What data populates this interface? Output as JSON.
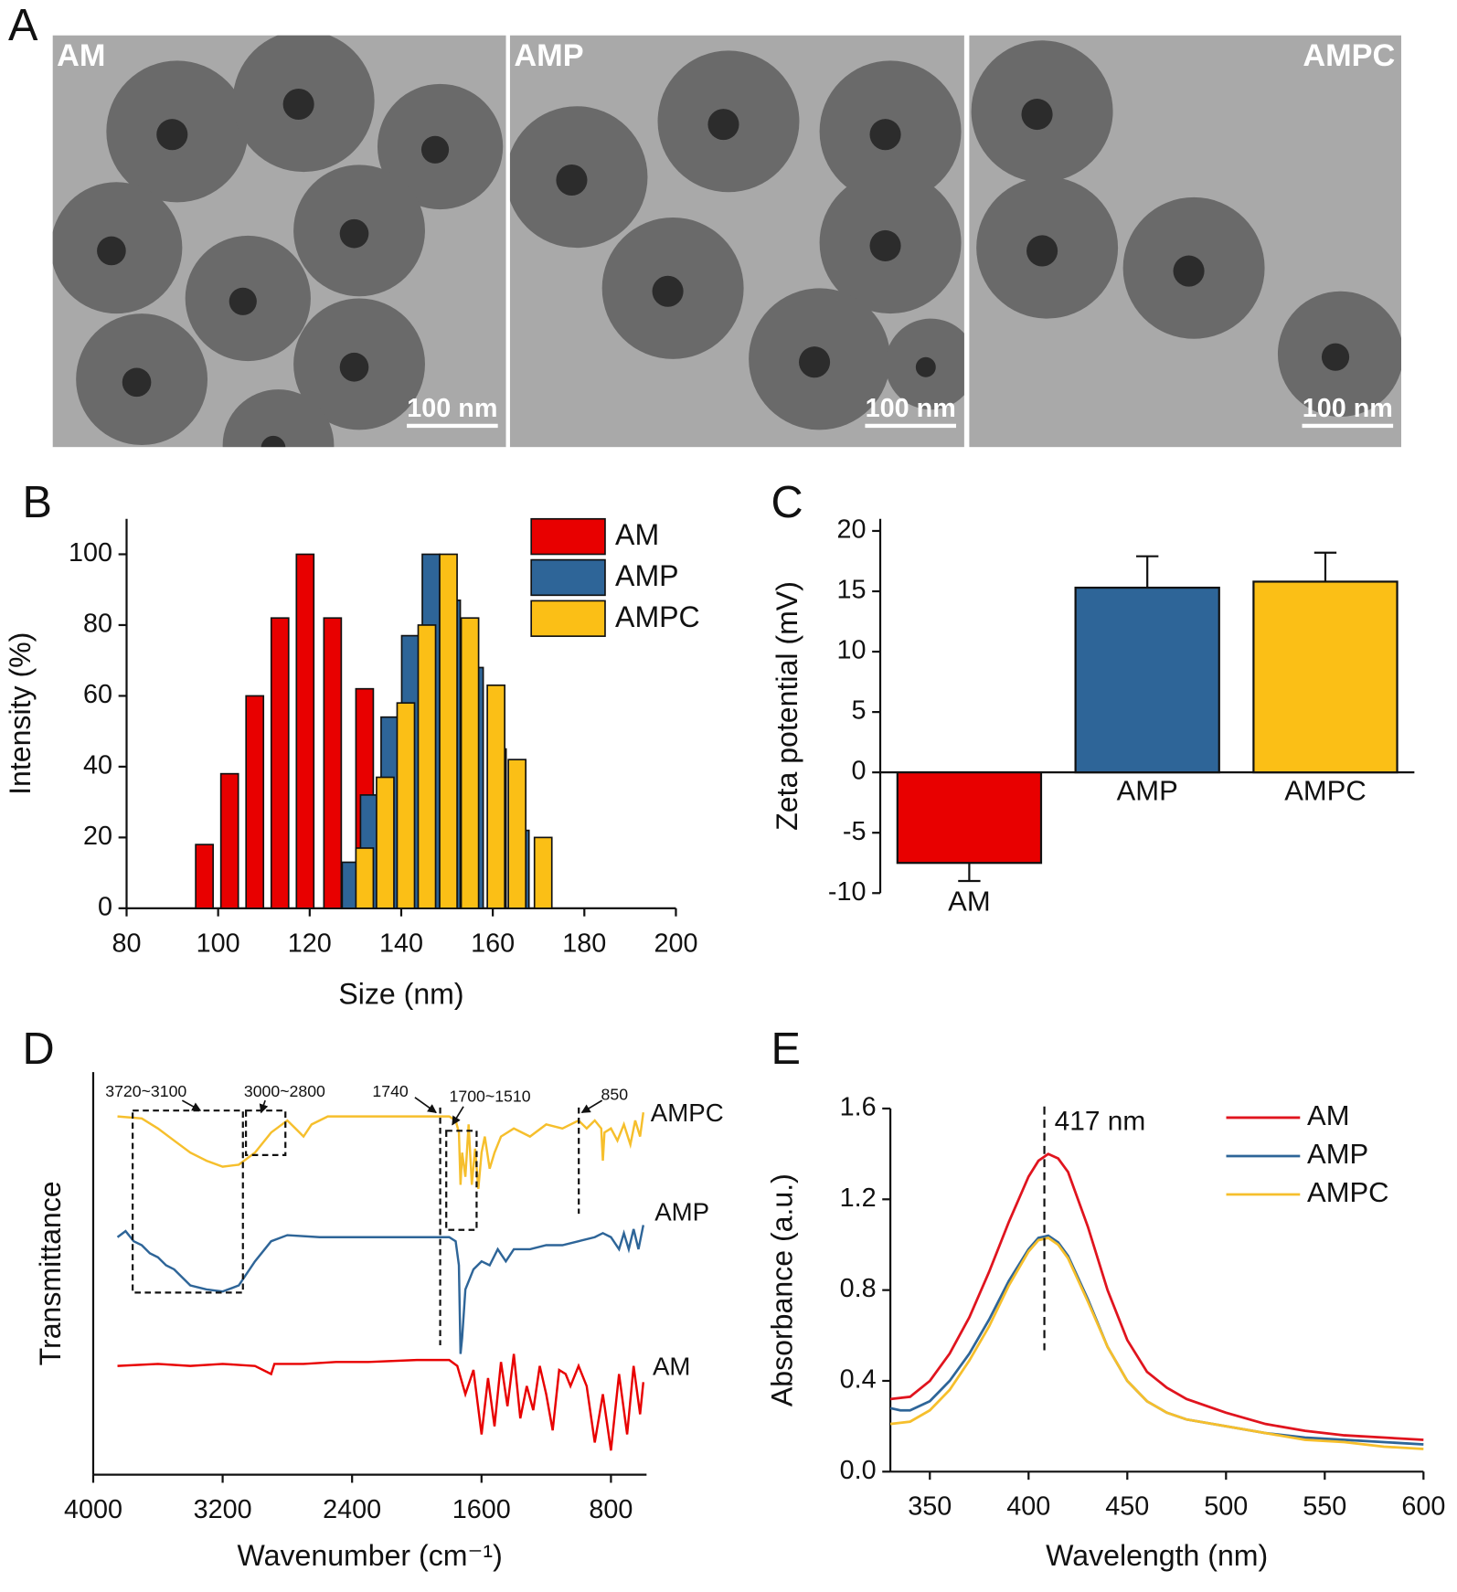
{
  "chart_data": [
    {
      "type": "image",
      "panel": "A",
      "panels": [
        {
          "label": "AM",
          "scale_bar": "100 nm"
        },
        {
          "label": "AMP",
          "scale_bar": "100 nm"
        },
        {
          "label": "AMPC",
          "scale_bar": "100 nm"
        }
      ]
    },
    {
      "type": "bar",
      "panel": "B",
      "x_label": "Size (nm)",
      "y_label": "Intensity (%)",
      "xlim": [
        80,
        200
      ],
      "xticks": [
        80,
        100,
        120,
        140,
        160,
        180,
        200
      ],
      "ylim": [
        0,
        110
      ],
      "yticks": [
        0,
        20,
        40,
        60,
        80,
        100
      ],
      "legend": "top-right",
      "series": [
        {
          "name": "AM",
          "color": "#e80000",
          "x": [
            97,
            102.5,
            108,
            113.5,
            119,
            125,
            132
          ],
          "values": [
            18,
            38,
            60,
            82,
            100,
            82,
            62
          ]
        },
        {
          "name": "AMP",
          "color": "#2e6598",
          "x": [
            129,
            133,
            137.5,
            142,
            146.5,
            151,
            156,
            161,
            166
          ],
          "values": [
            13,
            32,
            54,
            77,
            100,
            87,
            68,
            45,
            22
          ]
        },
        {
          "name": "AMPC",
          "color": "#fbbf16",
          "x": [
            132,
            136.5,
            141,
            145.6,
            150.3,
            155,
            160.7,
            165.3,
            171
          ],
          "values": [
            17,
            37,
            58,
            80,
            100,
            82,
            63,
            42,
            20
          ]
        }
      ]
    },
    {
      "type": "bar-error",
      "panel": "C",
      "y_label": "Zeta potential (mV)",
      "categories": [
        "AM",
        "AMP",
        "AMPC"
      ],
      "values": [
        -7.5,
        15.3,
        15.8
      ],
      "errors": [
        1.5,
        2.6,
        2.4
      ],
      "colors": [
        "#e80000",
        "#2e6598",
        "#fbbf16"
      ],
      "ylim": [
        -10,
        21
      ],
      "yticks": [
        -10,
        -5,
        0,
        5,
        10,
        15,
        20
      ]
    },
    {
      "type": "spectra",
      "panel": "D",
      "x_label": "Wavenumber (cm⁻¹)",
      "y_label": "Transmittance",
      "xlim": [
        4000,
        580
      ],
      "xticks": [
        4000,
        3200,
        2400,
        1600,
        800
      ],
      "ylim": [
        0,
        100
      ],
      "annotations": [
        "3720~3100",
        "3000~2800",
        "1740",
        "1700~1510",
        "850"
      ],
      "series": [
        {
          "name": "AMPC",
          "color": "#f6bf2c",
          "x": [
            3850,
            3700,
            3600,
            3500,
            3400,
            3300,
            3200,
            3100,
            3000,
            2900,
            2800,
            2750,
            2700,
            2650,
            2550,
            2400,
            2200,
            2000,
            1800,
            1760,
            1740,
            1730,
            1720,
            1700,
            1680,
            1660,
            1640,
            1620,
            1600,
            1580,
            1550,
            1520,
            1480,
            1400,
            1300,
            1200,
            1100,
            1000,
            950,
            900,
            860,
            850,
            840,
            800,
            760,
            720,
            680,
            650,
            620,
            600
          ],
          "values": [
            89,
            88.5,
            86,
            83,
            80,
            78,
            76.5,
            77,
            80,
            85,
            88,
            86,
            84,
            87,
            89,
            89,
            89,
            89,
            89,
            88,
            85,
            72,
            80,
            74,
            87,
            72,
            81,
            71,
            80,
            84,
            76,
            80,
            84,
            86,
            84,
            87,
            86,
            88,
            86,
            88,
            86,
            78,
            85,
            86,
            83,
            87,
            82,
            88,
            84,
            90
          ]
        },
        {
          "name": "AMP",
          "color": "#2e6598",
          "x": [
            3850,
            3800,
            3750,
            3700,
            3650,
            3600,
            3550,
            3500,
            3400,
            3300,
            3200,
            3100,
            3000,
            2900,
            2800,
            2600,
            2400,
            2000,
            1800,
            1760,
            1740,
            1730,
            1720,
            1700,
            1650,
            1600,
            1550,
            1500,
            1450,
            1400,
            1300,
            1200,
            1100,
            1000,
            900,
            850,
            800,
            750,
            720,
            690,
            660,
            630,
            600
          ],
          "values": [
            59,
            60.5,
            58,
            57,
            55,
            54,
            52,
            51,
            47,
            46,
            45.5,
            47,
            53,
            58,
            59.5,
            59,
            59,
            59,
            59,
            58,
            52,
            30,
            34,
            46,
            51,
            53,
            52,
            56,
            53,
            56,
            56,
            57,
            57,
            58,
            59,
            60,
            59,
            56,
            60,
            56,
            61,
            56,
            62
          ]
        },
        {
          "name": "AM",
          "color": "#e80000",
          "x": [
            3850,
            3600,
            3400,
            3200,
            3000,
            2900,
            2880,
            2700,
            2500,
            2300,
            2000,
            1800,
            1750,
            1700,
            1650,
            1600,
            1560,
            1520,
            1480,
            1440,
            1400,
            1360,
            1320,
            1280,
            1240,
            1200,
            1160,
            1120,
            1080,
            1050,
            1000,
            950,
            900,
            850,
            800,
            750,
            700,
            660,
            620,
            600
          ],
          "values": [
            27,
            27.5,
            27,
            27.5,
            27,
            25,
            27.5,
            27.5,
            28,
            28,
            28.5,
            28.5,
            27,
            20,
            26,
            10,
            24,
            12,
            28,
            17,
            30,
            14,
            22,
            16,
            27,
            20,
            11,
            26,
            25,
            22,
            27,
            22,
            8,
            20,
            6,
            25,
            10,
            27,
            15,
            23
          ]
        }
      ]
    },
    {
      "type": "line",
      "panel": "E",
      "x_label": "Wavelength (nm)",
      "y_label": "Absorbance (a.u.)",
      "xlim": [
        330,
        600
      ],
      "xticks": [
        350,
        400,
        450,
        500,
        550,
        600
      ],
      "ylim": [
        0,
        1.6
      ],
      "yticks": [
        {
          "value": 0,
          "label": "0.0"
        },
        0.4,
        0.8,
        1.2,
        1.6
      ],
      "legend": "top-right",
      "annotation": {
        "text": "417 nm",
        "x": 408
      },
      "series": [
        {
          "name": "AM",
          "color": "#e0141e",
          "x": [
            330,
            340,
            350,
            360,
            370,
            380,
            390,
            400,
            405,
            410,
            415,
            420,
            430,
            440,
            450,
            460,
            470,
            480,
            500,
            520,
            540,
            560,
            580,
            600
          ],
          "values": [
            0.32,
            0.33,
            0.4,
            0.52,
            0.68,
            0.88,
            1.1,
            1.3,
            1.37,
            1.4,
            1.38,
            1.32,
            1.08,
            0.8,
            0.58,
            0.44,
            0.37,
            0.32,
            0.26,
            0.21,
            0.18,
            0.16,
            0.15,
            0.14
          ]
        },
        {
          "name": "AMP",
          "color": "#2e6598",
          "x": [
            330,
            335,
            340,
            350,
            360,
            370,
            380,
            390,
            400,
            405,
            410,
            415,
            420,
            430,
            440,
            450,
            460,
            470,
            480,
            500,
            520,
            540,
            560,
            580,
            600
          ],
          "values": [
            0.28,
            0.27,
            0.27,
            0.31,
            0.4,
            0.52,
            0.67,
            0.84,
            0.98,
            1.03,
            1.04,
            1.01,
            0.95,
            0.76,
            0.55,
            0.4,
            0.31,
            0.26,
            0.23,
            0.2,
            0.17,
            0.15,
            0.14,
            0.13,
            0.12
          ]
        },
        {
          "name": "AMPC",
          "color": "#f6bf2c",
          "x": [
            330,
            340,
            350,
            360,
            370,
            380,
            390,
            400,
            405,
            410,
            415,
            420,
            430,
            440,
            450,
            460,
            470,
            480,
            500,
            520,
            540,
            560,
            580,
            600
          ],
          "values": [
            0.21,
            0.22,
            0.27,
            0.36,
            0.49,
            0.64,
            0.82,
            0.97,
            1.02,
            1.03,
            1.0,
            0.94,
            0.75,
            0.55,
            0.4,
            0.31,
            0.26,
            0.23,
            0.2,
            0.17,
            0.14,
            0.13,
            0.11,
            0.1
          ]
        }
      ]
    }
  ]
}
